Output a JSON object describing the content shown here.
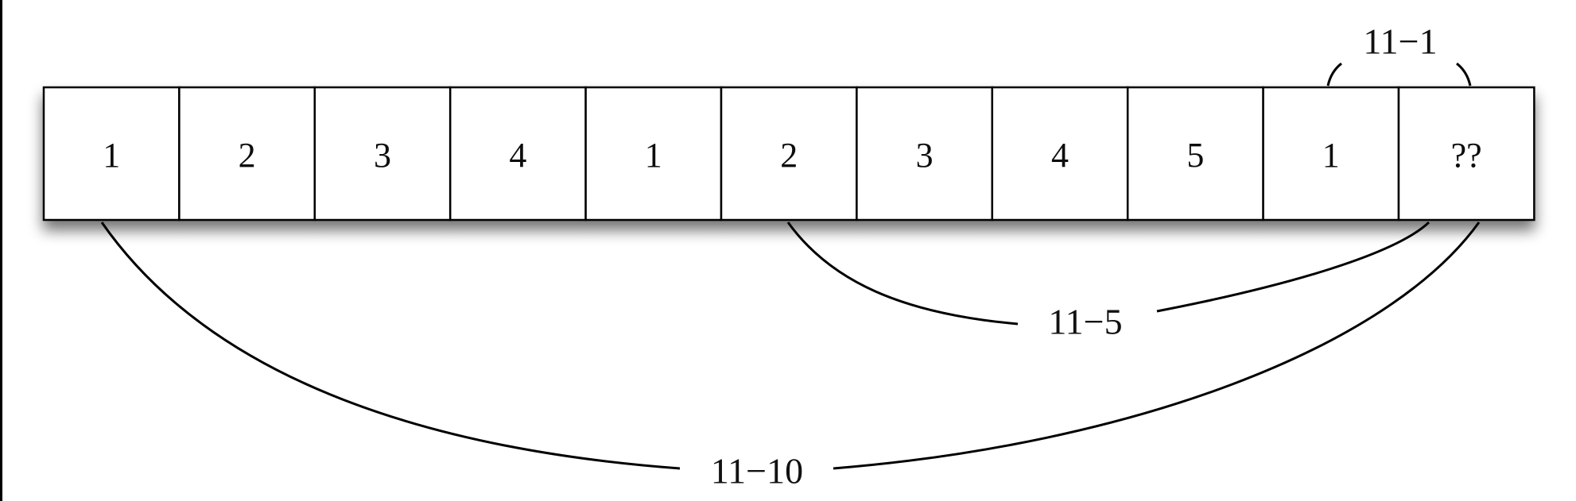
{
  "cells": [
    "1",
    "2",
    "3",
    "4",
    "1",
    "2",
    "3",
    "4",
    "5",
    "1",
    "??"
  ],
  "arcs": [
    {
      "label": "11−1",
      "from_cell": 9,
      "to_cell": 10
    },
    {
      "label": "11−5",
      "from_cell": 5,
      "to_cell": 10
    },
    {
      "label": "11−10",
      "from_cell": 0,
      "to_cell": 10
    }
  ],
  "colors": {
    "stroke": "#000000",
    "cell_fill": "#ffffff",
    "shadow": "#000000"
  }
}
